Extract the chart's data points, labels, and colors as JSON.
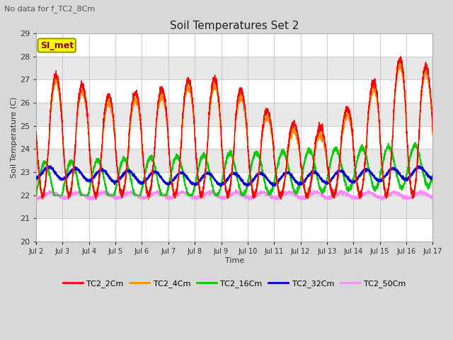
{
  "title": "Soil Temperatures Set 2",
  "subtitle": "No data for f_TC2_8Cm",
  "xlabel": "Time",
  "ylabel": "Soil Temperature (C)",
  "ylim": [
    20.0,
    29.0
  ],
  "yticks": [
    20.0,
    21.0,
    22.0,
    23.0,
    24.0,
    25.0,
    26.0,
    27.0,
    28.0,
    29.0
  ],
  "xtick_labels": [
    "Jul 2",
    "Jul 3",
    "Jul 4",
    "Jul 5",
    "Jul 6",
    "Jul 7",
    "Jul 8",
    "Jul 9",
    "Jul 10",
    "Jul 11",
    "Jul 12",
    "Jul 13",
    "Jul 14",
    "Jul 15",
    "Jul 16",
    "Jul 17"
  ],
  "legend_entries": [
    "TC2_2Cm",
    "TC2_4Cm",
    "TC2_16Cm",
    "TC2_32Cm",
    "TC2_50Cm"
  ],
  "legend_colors": [
    "#ff0000",
    "#ff8c00",
    "#00cc00",
    "#0000cc",
    "#ff88ff"
  ],
  "annotation_text": "SI_met",
  "annotation_box_facecolor": "#ffff00",
  "annotation_box_edgecolor": "#999900",
  "annotation_text_color": "#990000",
  "background_color": "#d8d8d8",
  "plot_bg_color": "#ffffff",
  "plot_band_color": "#e8e8e8",
  "grid_color": "#bbbbbb",
  "series_colors": {
    "TC2_2Cm": "#ff0000",
    "TC2_4Cm": "#ff8800",
    "TC2_16Cm": "#00cc00",
    "TC2_32Cm": "#0000dd",
    "TC2_50Cm": "#ff88ff"
  },
  "peak_heights": [
    27.2,
    27.2,
    26.6,
    26.2,
    26.5,
    26.6,
    27.1,
    27.0,
    26.4,
    25.4,
    25.0,
    24.9,
    26.0,
    27.2,
    28.1,
    27.4
  ],
  "n_days": 15
}
